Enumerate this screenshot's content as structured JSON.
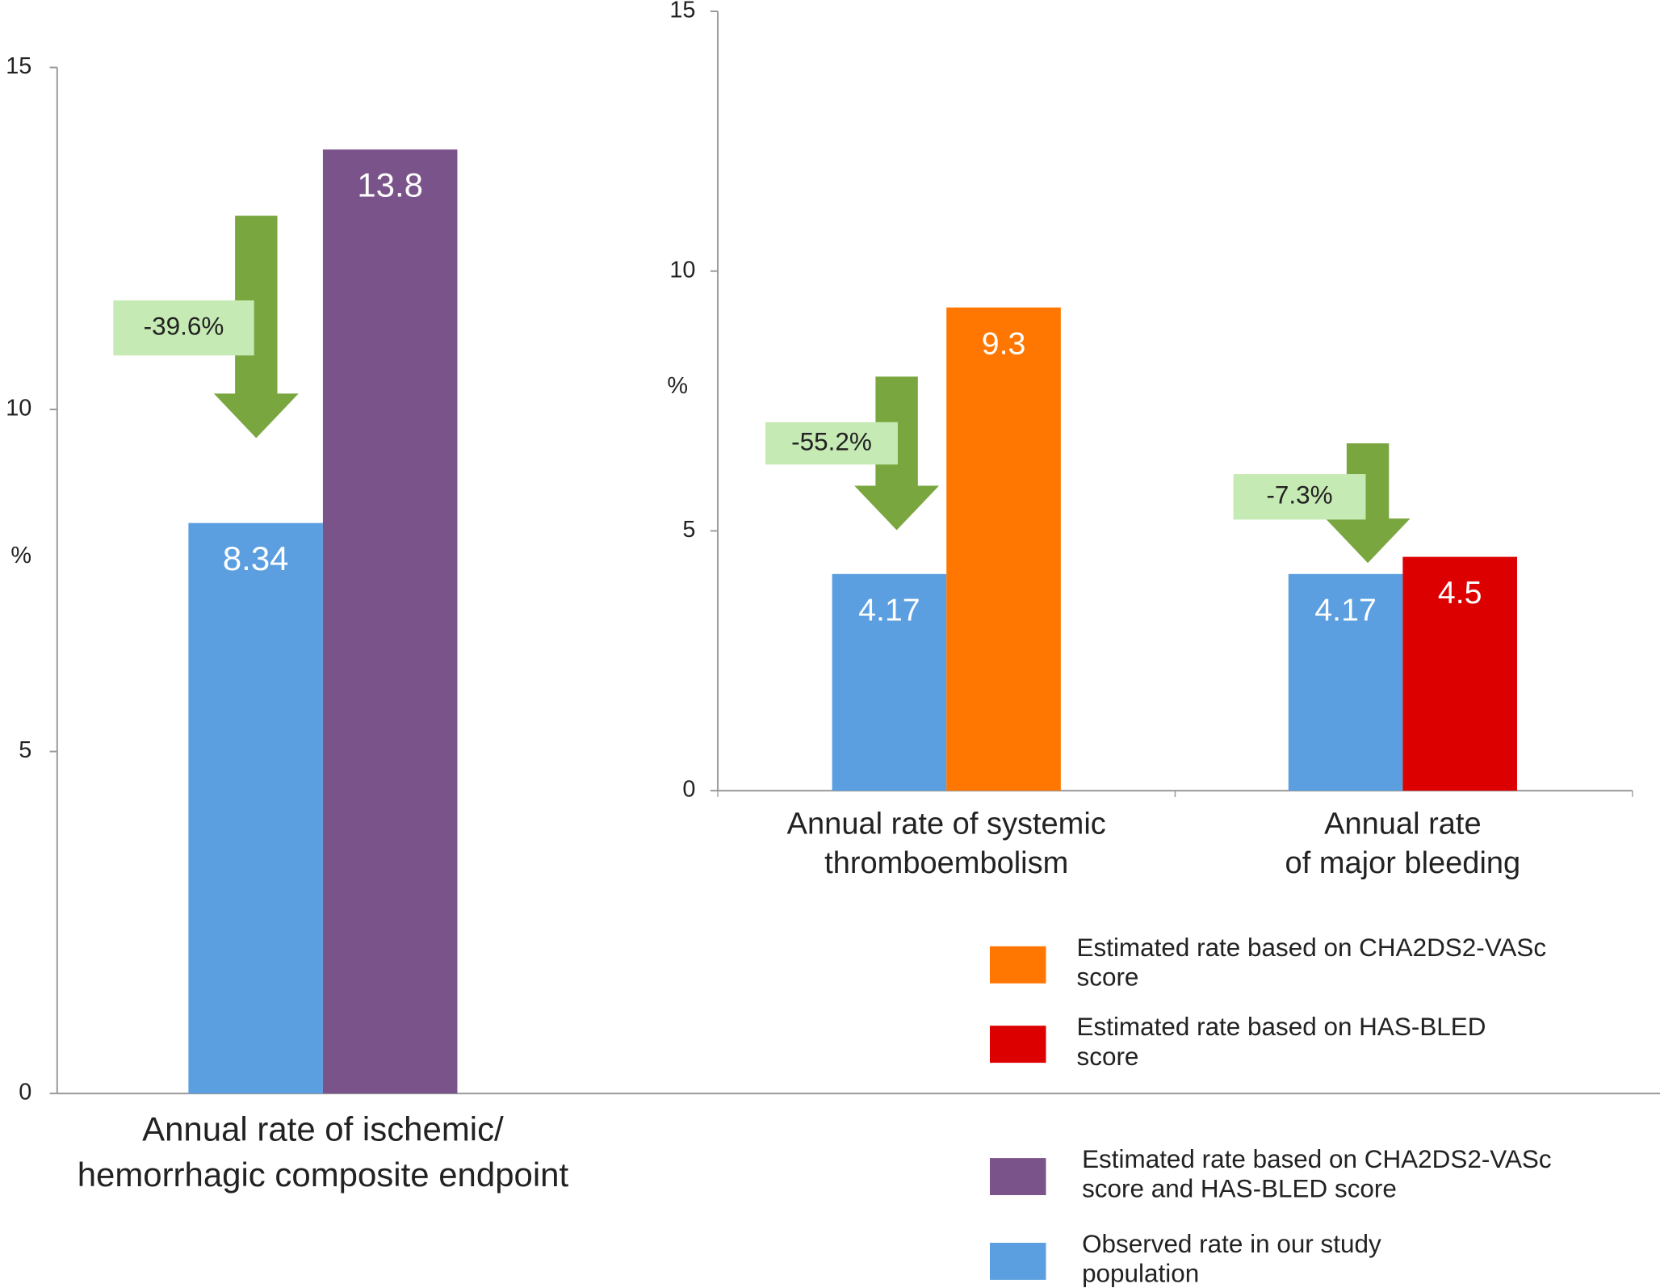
{
  "chart_data": [
    {
      "type": "bar",
      "categories": [
        [
          "Annual rate of ischemic/",
          "hemorrhagic composite endpoint"
        ]
      ],
      "series": [
        {
          "name": "Observed rate in our study population",
          "color": "#5b9fe0",
          "values": [
            8.34
          ]
        },
        {
          "name": "Estimated rate based on CHA2DS2-VASc score and HAS-BLED score",
          "color": "#7a538a",
          "values": [
            13.8
          ]
        }
      ],
      "ylabel": "%",
      "ylim": [
        0,
        15
      ],
      "yticks": [
        0,
        5,
        10,
        15
      ],
      "annotations": [
        "-39.6%"
      ]
    },
    {
      "type": "bar",
      "categories": [
        [
          "Annual rate of systemic",
          "thromboembolism"
        ],
        [
          "Annual rate",
          "of major bleeding"
        ]
      ],
      "series": [
        {
          "name": "Observed rate in our study population",
          "color": "#5b9fe0",
          "values": [
            4.17,
            4.17
          ]
        },
        {
          "name": "Estimated rate based on CHA2DS2-VASc score",
          "color": "#ff7700",
          "values": [
            9.3,
            null
          ]
        },
        {
          "name": "Estimated rate based on HAS-BLED score",
          "color": "#dd0000",
          "values": [
            null,
            4.5
          ]
        }
      ],
      "ylabel": "%",
      "ylim": [
        0,
        15
      ],
      "yticks": [
        0,
        5,
        10,
        15
      ],
      "annotations": [
        "-55.2%",
        "-7.3%"
      ]
    }
  ]
}
